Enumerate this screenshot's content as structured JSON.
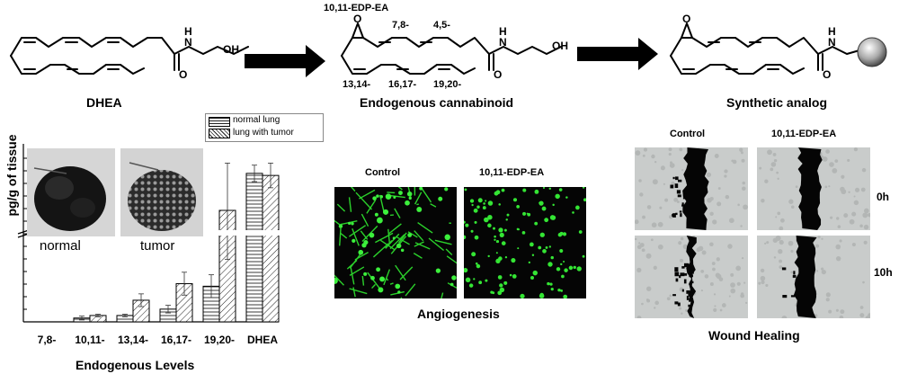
{
  "scheme": {
    "dhea_label": "DHEA",
    "oh_label_1": "OH",
    "h_label_1": "H",
    "n_label_1": "N",
    "o_label_1": "O",
    "epoxide_label": "10,11-EDP-EA",
    "pos_78": "7,8-",
    "pos_45": "4,5-",
    "pos_1314": "13,14-",
    "pos_1617": "16,17-",
    "pos_1920": "19,20-",
    "o_label_2": "O",
    "h_label_2": "H",
    "n_label_2": "N",
    "oh_label_2": "OH",
    "o_label_3": "O",
    "o_epox_2": "O",
    "o_epox_3": "O",
    "h_label_3": "H",
    "n_label_3": "N",
    "o_label_4": "O",
    "endogenous_label": "Endogenous cannabinoid",
    "synthetic_label": "Synthetic analog"
  },
  "chart_data": {
    "type": "bar",
    "categories": [
      "7,8-",
      "10,11-",
      "13,14-",
      "16,17-",
      "19,20-",
      "DHEA"
    ],
    "series": [
      {
        "name": "normal lung",
        "values": [
          0,
          0.3,
          0.5,
          1.0,
          2.8,
          9.0
        ],
        "errors": [
          0,
          0.15,
          0.1,
          0.3,
          0.9,
          0.4
        ]
      },
      {
        "name": "lung with tumor",
        "values": [
          0,
          0.5,
          1.7,
          3.0,
          7.2,
          8.9
        ],
        "errors": [
          0,
          0.1,
          0.5,
          0.9,
          2.3,
          0.6
        ]
      }
    ],
    "ylabel": "pg/g of tissue",
    "xlabel": "Endogenous Levels",
    "axis_break": true,
    "legend_placement": "top-right",
    "inset_labels": [
      "normal",
      "tumor"
    ]
  },
  "angiogenesis": {
    "control_label": "Control",
    "treated_label": "10,11-EDP-EA",
    "caption": "Angiogenesis"
  },
  "wound": {
    "control_label": "Control",
    "treated_label": "10,11-EDP-EA",
    "time_0": "0h",
    "time_10": "10h",
    "caption": "Wound Healing"
  }
}
